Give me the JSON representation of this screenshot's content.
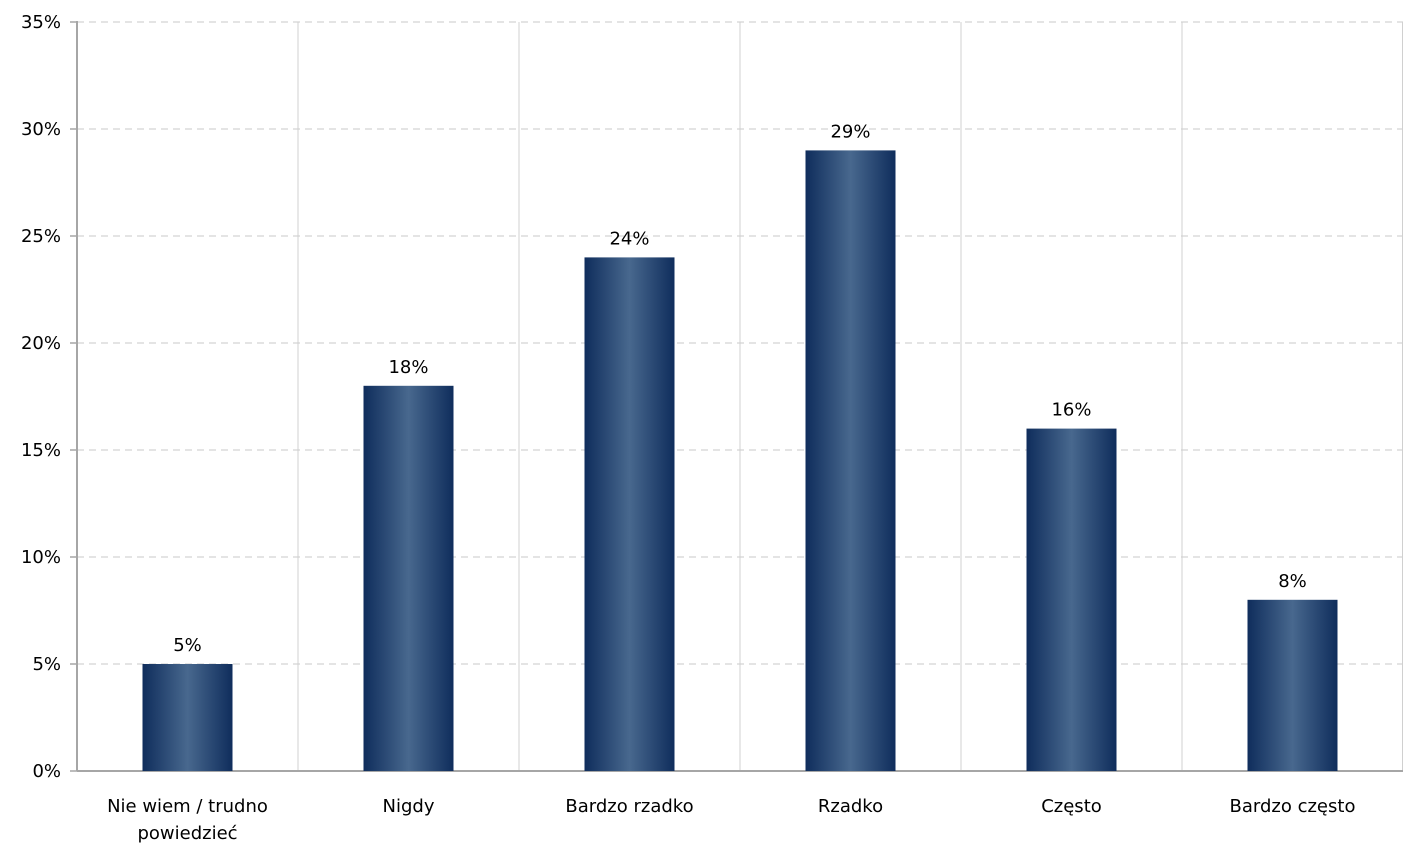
{
  "chart_data": {
    "type": "bar",
    "title": "",
    "xlabel": "",
    "ylabel": "",
    "categories": [
      [
        "Nie wiem / trudno",
        "powiedzieć"
      ],
      [
        "Nigdy"
      ],
      [
        "Bardzo rzadko"
      ],
      [
        "Rzadko"
      ],
      [
        "Często"
      ],
      [
        "Bardzo często"
      ]
    ],
    "values": [
      5,
      18,
      24,
      29,
      16,
      8
    ],
    "value_labels": [
      "5%",
      "18%",
      "24%",
      "29%",
      "16%",
      "8%"
    ],
    "ylim": [
      0,
      35
    ],
    "y_ticks": [
      0,
      5,
      10,
      15,
      20,
      25,
      30,
      35
    ],
    "y_tick_labels": [
      "0%",
      "5%",
      "10%",
      "15%",
      "20%",
      "25%",
      "30%",
      "35%"
    ],
    "grid": true,
    "colors": {
      "bar_edge": "#0f2d5c",
      "bar_center": "#48688e",
      "gridline": "#c8c8c8",
      "axis": "#a6a6a6",
      "separator": "#d0d0d0"
    }
  }
}
